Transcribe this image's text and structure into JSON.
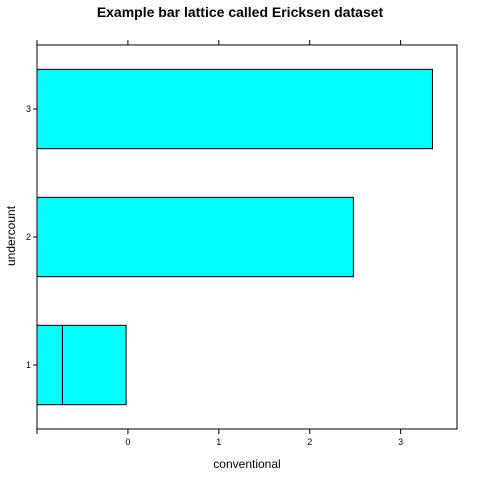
{
  "chart_data": {
    "type": "bar",
    "orientation": "horizontal",
    "title": "Example bar lattice called Ericksen dataset",
    "xlabel": "conventional",
    "ylabel": "undercount",
    "categories": [
      "1",
      "2",
      "3"
    ],
    "bars": [
      {
        "category": "1",
        "values": [
          -1.0,
          -0.72,
          -0.02
        ]
      },
      {
        "category": "2",
        "values": [
          2.48
        ]
      },
      {
        "category": "3",
        "values": [
          3.35
        ]
      }
    ],
    "xlim": [
      -1.0,
      3.62
    ],
    "xticks": [
      "0",
      "1",
      "2",
      "3"
    ],
    "bar_color": "#00ffff",
    "grid": false,
    "legend": "none"
  }
}
